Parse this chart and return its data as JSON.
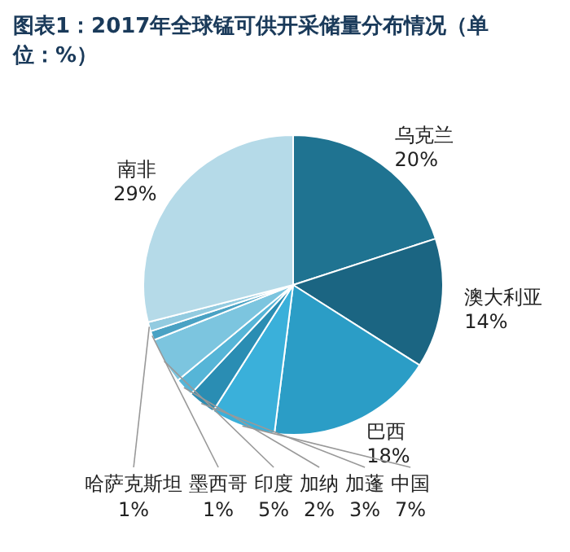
{
  "chart_data": {
    "type": "pie",
    "title": "图表1：2017年全球锰可供开采储量分布情况（单位：%）",
    "categories": [
      "乌克兰",
      "澳大利亚",
      "巴西",
      "中国",
      "加蓬",
      "加纳",
      "印度",
      "墨西哥",
      "哈萨克斯坦",
      "南非"
    ],
    "values": [
      20,
      14,
      18,
      7,
      3,
      2,
      5,
      1,
      1,
      29
    ],
    "value_labels": [
      "20%",
      "14%",
      "18%",
      "7%",
      "3%",
      "2%",
      "5%",
      "1%",
      "1%",
      "29%"
    ],
    "colors": [
      "#1f7391",
      "#1b6582",
      "#2b9dc6",
      "#3ab0da",
      "#2a8db3",
      "#56b5d7",
      "#7cc5df",
      "#4aa2c4",
      "#93cbe0",
      "#b5dae8"
    ]
  }
}
